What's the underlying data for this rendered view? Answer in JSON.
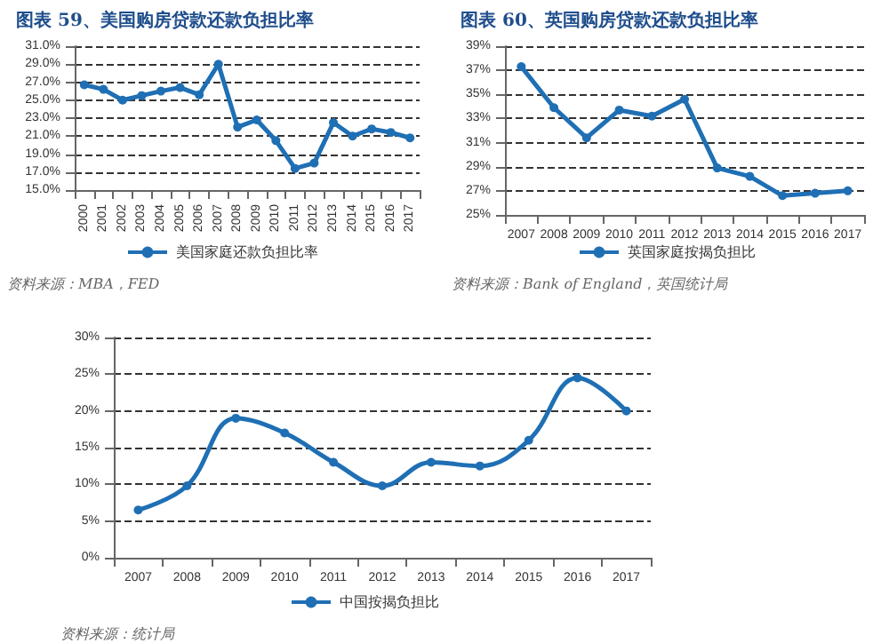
{
  "chart_data": [
    {
      "type": "line",
      "title": "图表 59、美国购房贷款还款负担比率",
      "categories": [
        "2000",
        "2001",
        "2002",
        "2003",
        "2004",
        "2005",
        "2006",
        "2007",
        "2008",
        "2009",
        "2010",
        "2011",
        "2012",
        "2013",
        "2014",
        "2015",
        "2016",
        "2017"
      ],
      "series": [
        {
          "name": "美国家庭还款负担比率",
          "color": "#1f6fb4",
          "values": [
            26.7,
            26.2,
            25.0,
            25.5,
            26.0,
            26.4,
            25.6,
            29.0,
            22.0,
            22.8,
            20.5,
            17.4,
            18.0,
            22.5,
            21.0,
            21.8,
            21.4,
            20.8
          ]
        }
      ],
      "ylim": [
        15,
        31
      ],
      "yticks": [
        {
          "value": 15,
          "label": "15.0%"
        },
        {
          "value": 17,
          "label": "17.0%"
        },
        {
          "value": 19,
          "label": "19.0%"
        },
        {
          "value": 21,
          "label": "21.0%"
        },
        {
          "value": 23,
          "label": "23.0%"
        },
        {
          "value": 25,
          "label": "25.0%"
        },
        {
          "value": 27,
          "label": "27.0%"
        },
        {
          "value": 29,
          "label": "29.0%"
        },
        {
          "value": 31,
          "label": "31.0%"
        }
      ],
      "grid": "y",
      "legend": "bottom",
      "marker": "circle",
      "line_style": "solid",
      "annotations": [
        "资料来源：MBA，FED"
      ]
    },
    {
      "type": "line",
      "title": "图表 60、英国购房贷款还款负担比率",
      "categories": [
        "2007",
        "2008",
        "2009",
        "2010",
        "2011",
        "2012",
        "2013",
        "2014",
        "2015",
        "2016",
        "2017"
      ],
      "series": [
        {
          "name": "英国家庭按揭负担比",
          "color": "#1f6fb4",
          "values": [
            37.3,
            33.9,
            31.4,
            33.7,
            33.2,
            34.6,
            28.9,
            28.2,
            26.6,
            26.8,
            27.0
          ]
        }
      ],
      "ylim": [
        25,
        39
      ],
      "yticks": [
        {
          "value": 25,
          "label": "25%"
        },
        {
          "value": 27,
          "label": "27%"
        },
        {
          "value": 29,
          "label": "29%"
        },
        {
          "value": 31,
          "label": "31%"
        },
        {
          "value": 33,
          "label": "33%"
        },
        {
          "value": 35,
          "label": "35%"
        },
        {
          "value": 37,
          "label": "37%"
        },
        {
          "value": 39,
          "label": "39%"
        }
      ],
      "grid": "y",
      "legend": "bottom",
      "marker": "circle",
      "line_style": "solid",
      "annotations": [
        "资料来源：Bank of England，英国统计局"
      ]
    },
    {
      "type": "line",
      "categories": [
        "2007",
        "2008",
        "2009",
        "2010",
        "2011",
        "2012",
        "2013",
        "2014",
        "2015",
        "2016",
        "2017"
      ],
      "series": [
        {
          "name": "中国按揭负担比",
          "color": "#1f6fb4",
          "values": [
            6.5,
            9.8,
            19,
            17,
            13,
            9.8,
            13,
            12.5,
            16,
            24.5,
            20
          ]
        }
      ],
      "ylim": [
        0,
        30
      ],
      "yticks": [
        {
          "value": 0,
          "label": "0%"
        },
        {
          "value": 5,
          "label": "5%"
        },
        {
          "value": 10,
          "label": "10%"
        },
        {
          "value": 15,
          "label": "15%"
        },
        {
          "value": 20,
          "label": "20%"
        },
        {
          "value": 25,
          "label": "25%"
        },
        {
          "value": 30,
          "label": "30%"
        }
      ],
      "grid": "y",
      "legend": "bottom",
      "marker": "circle",
      "line_style": "solid",
      "annotations": [
        "资料来源：统计局"
      ]
    }
  ]
}
